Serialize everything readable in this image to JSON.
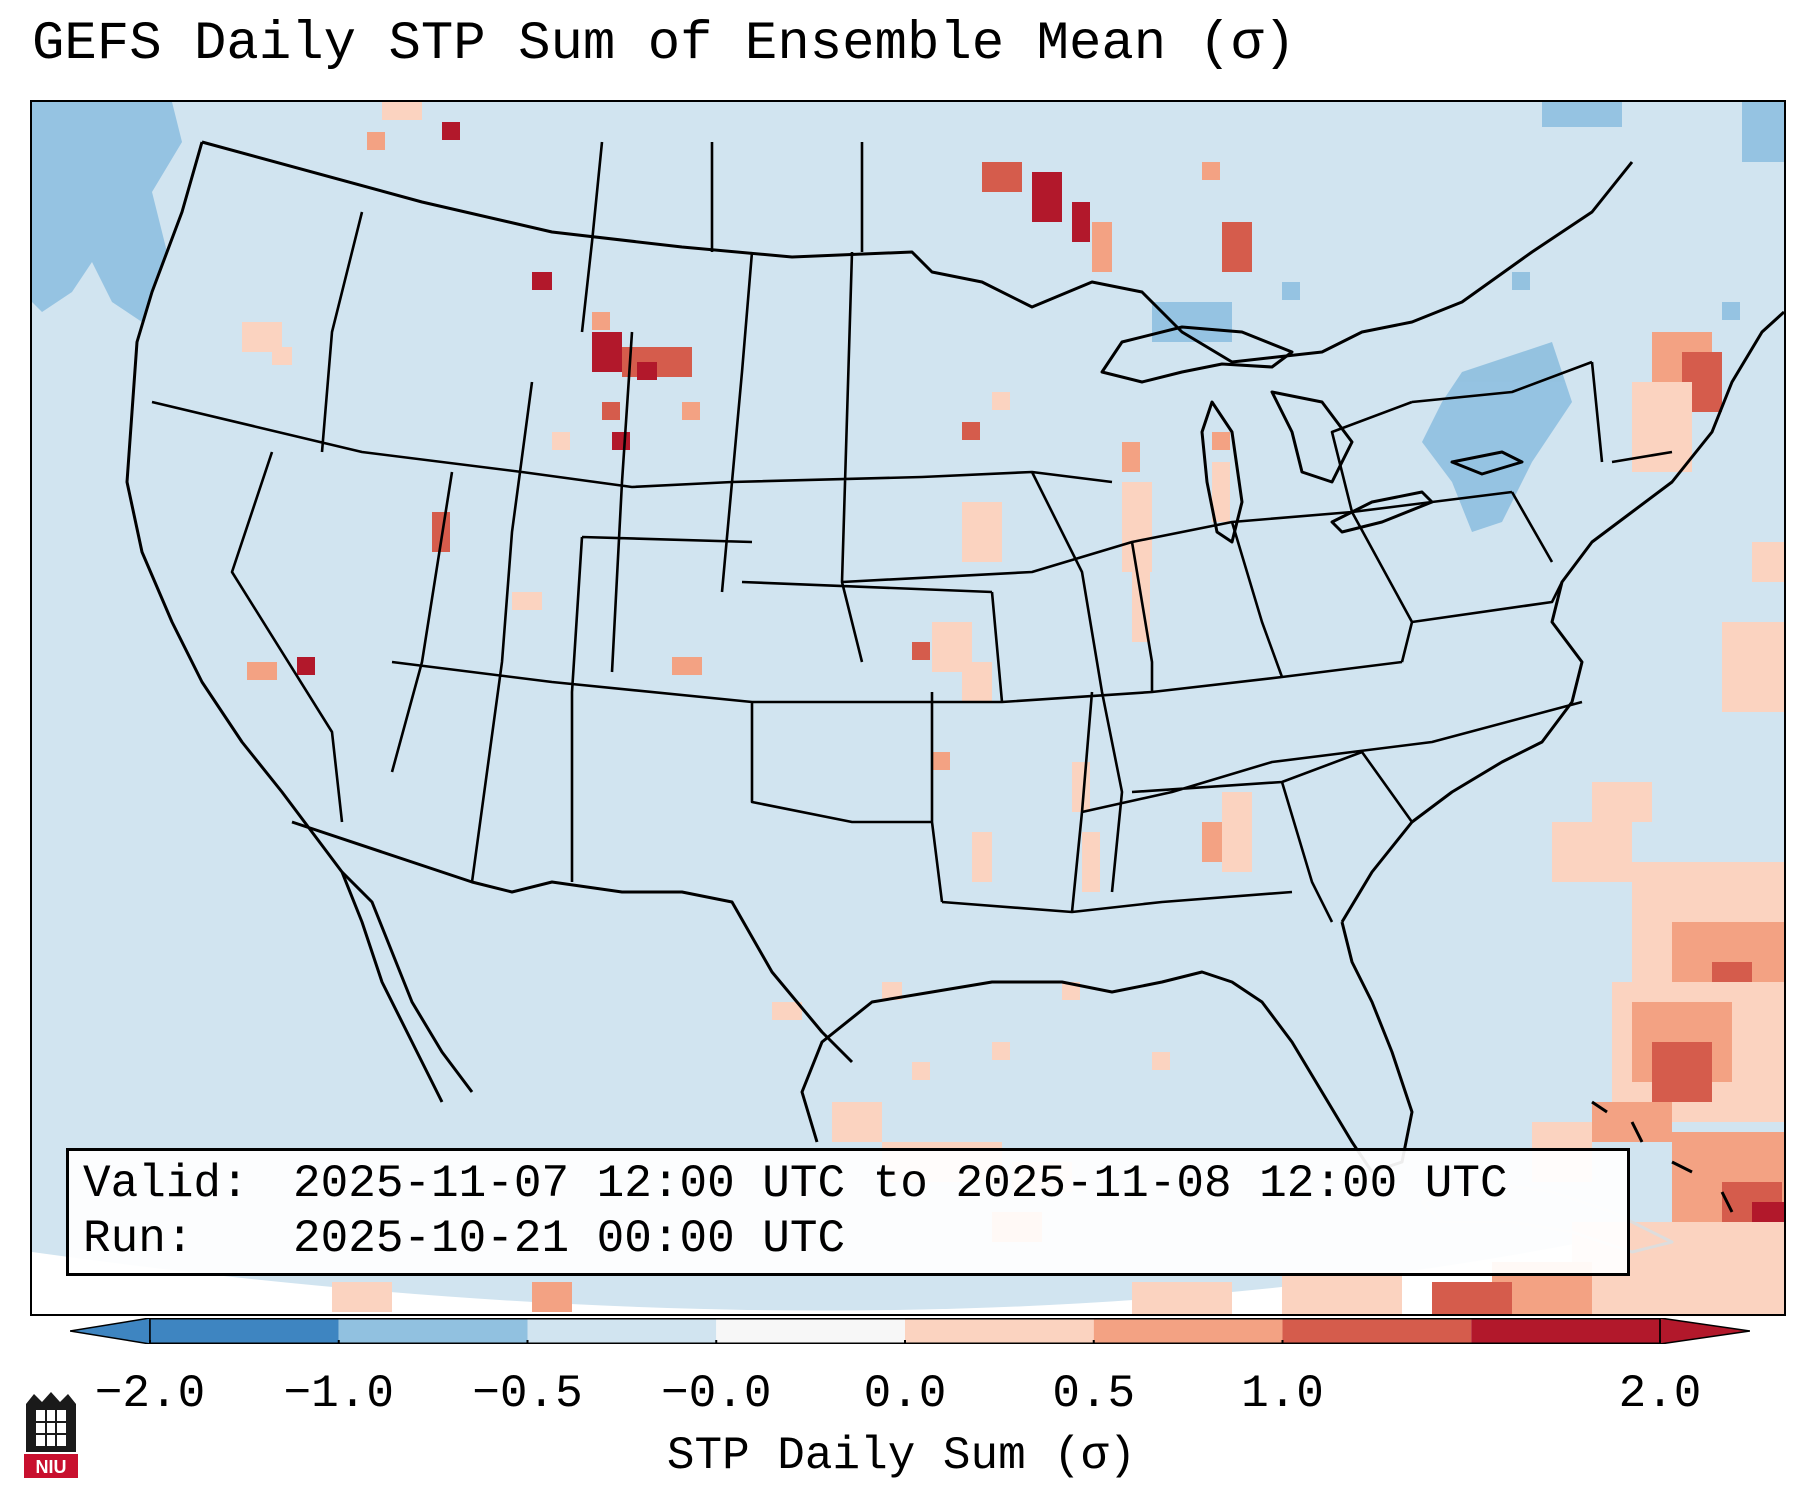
{
  "title": "GEFS Daily STP Sum of Ensemble Mean (σ)",
  "valid_label": "Valid:",
  "valid_value": "2025-11-07 12:00 UTC to 2025-11-08 12:00 UTC",
  "run_label": "Run:",
  "run_value": "2025-10-21 00:00 UTC",
  "colorbar": {
    "label": "STP Daily Sum (σ)",
    "ticks": [
      "−2.0",
      "−1.0",
      "−0.5",
      "−0.0",
      "0.0",
      "0.5",
      "1.0",
      "2.0"
    ],
    "colors": [
      "#3e85c1",
      "#91c1e0",
      "#d1e4f0",
      "#f7f7f7",
      "#fbd3c0",
      "#f3a283",
      "#d55c4c",
      "#b2182b"
    ]
  },
  "colors": {
    "background_field": "#d1e4f0",
    "light_positive": "#fbd3c0",
    "positive": "#f3a283",
    "strong_positive": "#d55c4c",
    "very_strong": "#b2182b",
    "light_negative": "#91c1e0"
  },
  "logo_text": "NIU"
}
